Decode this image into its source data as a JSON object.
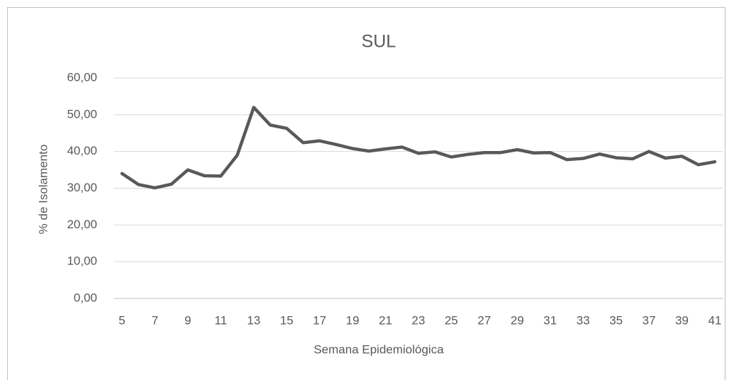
{
  "chart_data": {
    "type": "line",
    "title": "SUL",
    "x_label": "Semana Epidemiológica",
    "y_label": "% de Isolamento",
    "categories": [
      "5",
      null,
      "7",
      null,
      "9",
      null,
      "11",
      null,
      "13",
      null,
      "15",
      null,
      "17",
      null,
      "19",
      null,
      "21",
      null,
      "23",
      null,
      "25",
      null,
      "27",
      null,
      "29",
      null,
      "31",
      null,
      "33",
      null,
      "35",
      null,
      "37",
      null,
      "39",
      null,
      "41"
    ],
    "series": [
      {
        "name": "SUL",
        "color": "#595959",
        "values": [
          34,
          31,
          30.1,
          31.1,
          35,
          33.4,
          33.3,
          39,
          52,
          47.2,
          46.3,
          42.4,
          42.9,
          41.9,
          40.8,
          40.1,
          40.7,
          41.2,
          39.5,
          39.9,
          38.5,
          39.2,
          39.7,
          39.7,
          40.5,
          39.6,
          39.7,
          37.8,
          38.1,
          39.3,
          38.3,
          38,
          40,
          38.2,
          38.7,
          36.4,
          37.2
        ]
      }
    ],
    "ylim": [
      0,
      60
    ],
    "yticks": [
      {
        "value": 0,
        "label": "0,00"
      },
      {
        "value": 10,
        "label": "10,00"
      },
      {
        "value": 20,
        "label": "20,00"
      },
      {
        "value": 30,
        "label": "30,00"
      },
      {
        "value": 40,
        "label": "40,00"
      },
      {
        "value": 50,
        "label": "50,00"
      },
      {
        "value": 60,
        "label": "60,00"
      }
    ],
    "grid": true
  }
}
